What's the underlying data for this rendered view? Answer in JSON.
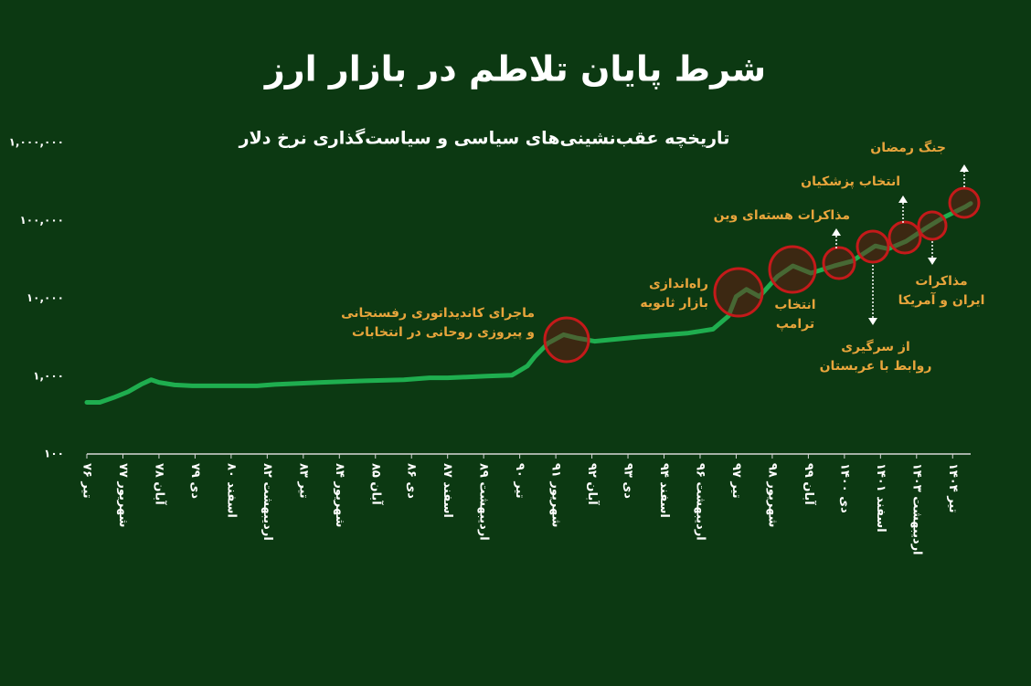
{
  "chart_data": {
    "type": "line",
    "title": "شرط پایان تلاطم در بازار ارز",
    "subtitle": "تاریخچه عقب‌نشینی‌های سیاسی و سیاست‌گذاری نرخ دلار",
    "color": "#1fae4f",
    "log_scale": true,
    "xlim": [
      0,
      343
    ],
    "ylim": [
      100,
      1000000
    ],
    "yticks": [
      {
        "value": 100,
        "label": "۱۰۰"
      },
      {
        "value": 1000,
        "label": "۱,۰۰۰"
      },
      {
        "value": 10000,
        "label": "۱۰,۰۰۰"
      },
      {
        "value": 100000,
        "label": "۱۰۰,۰۰۰"
      },
      {
        "value": 1000000,
        "label": "۱,۰۰۰,۰۰۰"
      }
    ],
    "xticks": [
      {
        "value": 0,
        "label": "تیر ۷۶"
      },
      {
        "value": 14,
        "label": "شهریور ۷۷"
      },
      {
        "value": 28,
        "label": "آبان ۷۸"
      },
      {
        "value": 42,
        "label": "دی ۷۹"
      },
      {
        "value": 56,
        "label": "اسفند ۸۰"
      },
      {
        "value": 70,
        "label": "اردیبهشت ۸۲"
      },
      {
        "value": 84,
        "label": "تیر ۸۳"
      },
      {
        "value": 98,
        "label": "شهریور ۸۴"
      },
      {
        "value": 112,
        "label": "آبان ۸۵"
      },
      {
        "value": 126,
        "label": "دی ۸۶"
      },
      {
        "value": 140,
        "label": "اسفند ۸۷"
      },
      {
        "value": 154,
        "label": "اردیبهشت ۸۹"
      },
      {
        "value": 168,
        "label": "تیر ۹۰"
      },
      {
        "value": 182,
        "label": "شهریور ۹۱"
      },
      {
        "value": 196,
        "label": "آبان ۹۲"
      },
      {
        "value": 210,
        "label": "دی ۹۳"
      },
      {
        "value": 224,
        "label": "اسفند ۹۴"
      },
      {
        "value": 238,
        "label": "اردیبهشت ۹۶"
      },
      {
        "value": 252,
        "label": "تیر ۹۷"
      },
      {
        "value": 266,
        "label": "شهریور ۹۸"
      },
      {
        "value": 280,
        "label": "آبان ۹۹"
      },
      {
        "value": 294,
        "label": "دی ۱۴۰۰"
      },
      {
        "value": 308,
        "label": "اسفند ۱۴۰۱"
      },
      {
        "value": 322,
        "label": "اردیبهشت ۱۴۰۳"
      },
      {
        "value": 336,
        "label": "تیر ۱۴۰۴"
      }
    ],
    "x": [
      0,
      5,
      11,
      16,
      21,
      25,
      28,
      34,
      41,
      66,
      73,
      91,
      108,
      123,
      133,
      140,
      155,
      165,
      171,
      174,
      179,
      185,
      190,
      197,
      215,
      233,
      243,
      249,
      252,
      256,
      261,
      268,
      274,
      281,
      290,
      297,
      306,
      311,
      318,
      325,
      332,
      341,
      343
    ],
    "values": [
      460,
      460,
      540,
      630,
      780,
      900,
      830,
      770,
      750,
      750,
      780,
      830,
      870,
      900,
      950,
      950,
      1000,
      1030,
      1350,
      1800,
      2650,
      3400,
      3100,
      2800,
      3200,
      3550,
      4000,
      5900,
      10500,
      13000,
      10500,
      19000,
      26000,
      21000,
      26000,
      30000,
      47000,
      43000,
      54000,
      77000,
      107000,
      150000,
      165000
    ],
    "annotations": [
      {
        "text": [
          "ماجرای کاندیداتوری رفسنجانی",
          "و پیروزی روحانی در انتخابات"
        ]
      },
      {
        "text": [
          "راه‌اندازی",
          "بازار ثانویه"
        ]
      },
      {
        "text": [
          "انتخاب",
          "ترامپ"
        ]
      },
      {
        "text": [
          "مذاکرات هسته‌ای وین"
        ]
      },
      {
        "text": [
          "از سرگیری",
          "روابط با عربستان"
        ]
      },
      {
        "text": [
          "انتخاب پزشکیان"
        ]
      },
      {
        "text": [
          "مذاکرات",
          "ایران و آمریکا"
        ]
      },
      {
        "text": [
          "جنگ رمضان"
        ]
      }
    ]
  }
}
